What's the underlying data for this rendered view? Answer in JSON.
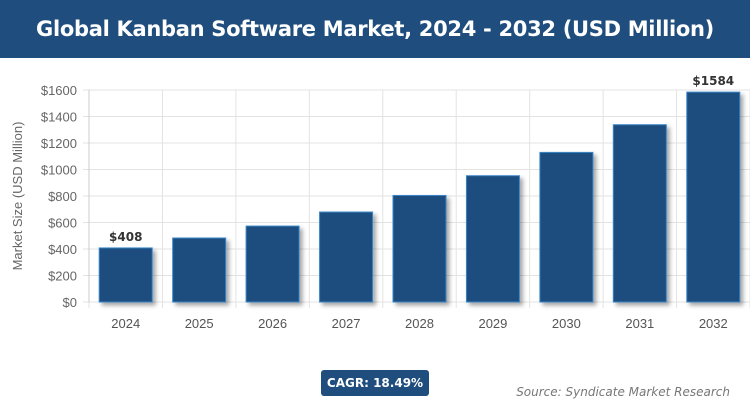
{
  "header": {
    "title": "Global Kanban Software Market, 2024 - 2032 (USD Million)"
  },
  "chart_data": {
    "type": "bar",
    "title": "Global Kanban Software Market, 2024 - 2032 (USD Million)",
    "ylabel": "Market Size (USD Million)",
    "xlabel": "",
    "categories": [
      "2024",
      "2025",
      "2026",
      "2027",
      "2028",
      "2029",
      "2030",
      "2031",
      "2032"
    ],
    "values": [
      408,
      483,
      573,
      679,
      804,
      953,
      1129,
      1338,
      1584
    ],
    "data_labels": {
      "0": "$408",
      "8": "$1584"
    },
    "ylim": [
      0,
      1600
    ],
    "yticks": [
      0,
      200,
      400,
      600,
      800,
      1000,
      1200,
      1400,
      1600
    ],
    "ytick_labels": [
      "$0",
      "$200",
      "$400",
      "$600",
      "$800",
      "$1000",
      "$1200",
      "$1400",
      "$1600"
    ],
    "grid": true,
    "bar_color": "#1f4e7e"
  },
  "footer": {
    "cagr": "CAGR: 18.49%",
    "source": "Source: Syndicate Market Research"
  }
}
